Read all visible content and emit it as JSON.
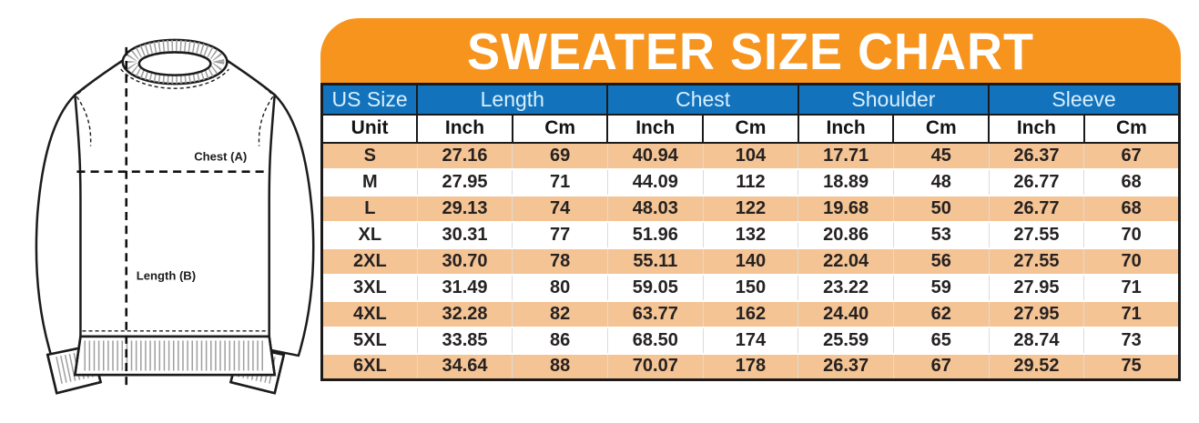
{
  "diagram": {
    "chest_label": "Chest (A)",
    "length_label": "Length (B)"
  },
  "chart_data": {
    "type": "table",
    "title": "SWEATER SIZE CHART",
    "group_columns": [
      {
        "label": "US Size",
        "span": 1
      },
      {
        "label": "Length",
        "span": 2
      },
      {
        "label": "Chest",
        "span": 2
      },
      {
        "label": "Shoulder",
        "span": 2
      },
      {
        "label": "Sleeve",
        "span": 2
      }
    ],
    "unit_row": [
      "Unit",
      "Inch",
      "Cm",
      "Inch",
      "Cm",
      "Inch",
      "Cm",
      "Inch",
      "Cm"
    ],
    "rows": [
      {
        "size": "S",
        "values": [
          "27.16",
          "69",
          "40.94",
          "104",
          "17.71",
          "45",
          "26.37",
          "67"
        ]
      },
      {
        "size": "M",
        "values": [
          "27.95",
          "71",
          "44.09",
          "112",
          "18.89",
          "48",
          "26.77",
          "68"
        ]
      },
      {
        "size": "L",
        "values": [
          "29.13",
          "74",
          "48.03",
          "122",
          "19.68",
          "50",
          "26.77",
          "68"
        ]
      },
      {
        "size": "XL",
        "values": [
          "30.31",
          "77",
          "51.96",
          "132",
          "20.86",
          "53",
          "27.55",
          "70"
        ]
      },
      {
        "size": "2XL",
        "values": [
          "30.70",
          "78",
          "55.11",
          "140",
          "22.04",
          "56",
          "27.55",
          "70"
        ]
      },
      {
        "size": "3XL",
        "values": [
          "31.49",
          "80",
          "59.05",
          "150",
          "23.22",
          "59",
          "27.95",
          "71"
        ]
      },
      {
        "size": "4XL",
        "values": [
          "32.28",
          "82",
          "63.77",
          "162",
          "24.40",
          "62",
          "27.95",
          "71"
        ]
      },
      {
        "size": "5XL",
        "values": [
          "33.85",
          "86",
          "68.50",
          "174",
          "25.59",
          "65",
          "28.74",
          "73"
        ]
      },
      {
        "size": "6XL",
        "values": [
          "34.64",
          "88",
          "70.07",
          "178",
          "26.37",
          "67",
          "29.52",
          "75"
        ]
      }
    ]
  },
  "colors": {
    "banner_orange": "#F7941E",
    "header_blue": "#1273BC",
    "row_peach": "#F5C494",
    "header_text": "#D9EFFE",
    "border_black": "#1A1A1A"
  }
}
